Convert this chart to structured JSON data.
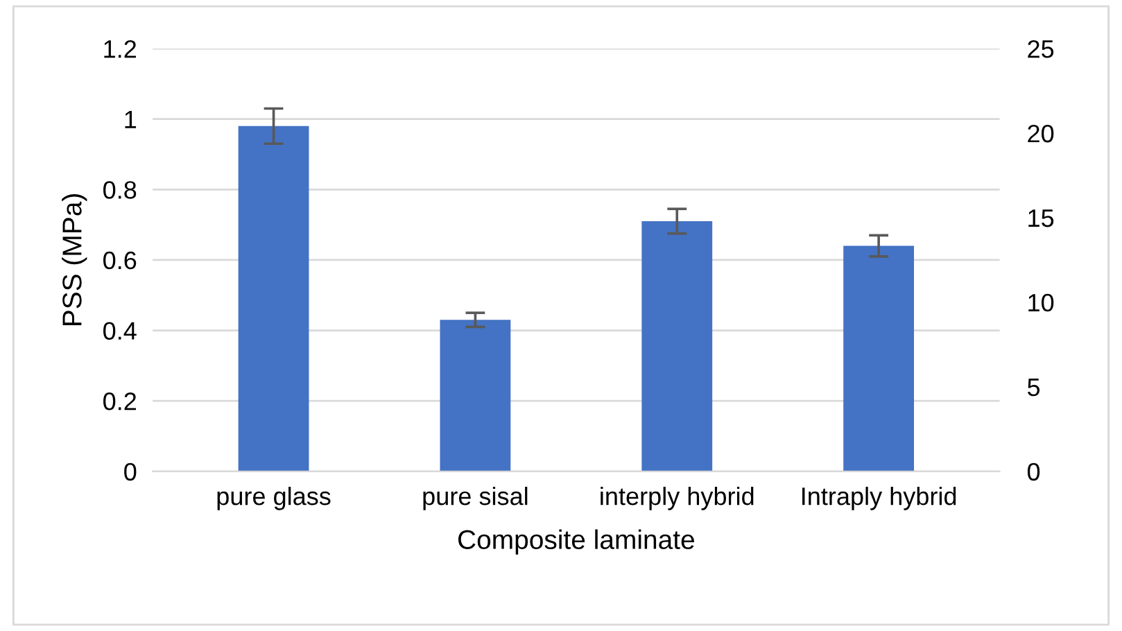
{
  "chart_data": {
    "type": "bar",
    "xlabel": "Composite laminate",
    "ylabel": "PSS (MPa)",
    "categories": [
      "pure glass",
      "pure sisal",
      "interply hybrid",
      "Intraply hybrid"
    ],
    "series": [
      {
        "color": "#4472c4",
        "values": [
          0.98,
          0.43,
          0.71,
          0.64
        ],
        "errors": [
          0.05,
          0.02,
          0.035,
          0.03
        ]
      }
    ],
    "ylim": [
      0,
      1.2
    ],
    "yticks": [
      0,
      0.2,
      0.4,
      0.6,
      0.8,
      1,
      1.2
    ],
    "y2lim": [
      0,
      25
    ],
    "y2ticks": [
      0,
      5,
      10,
      15,
      20,
      25
    ],
    "grid": "y",
    "legend": false
  }
}
